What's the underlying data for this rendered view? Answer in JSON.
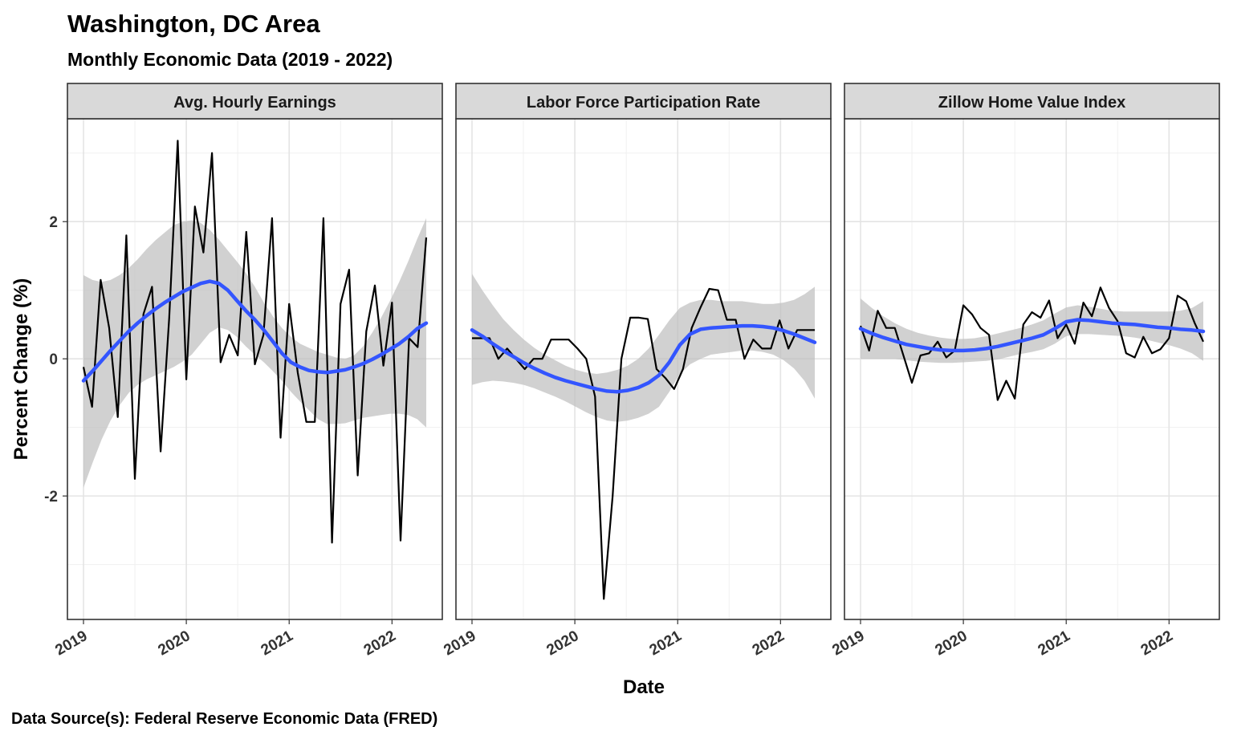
{
  "title": "Washington, DC Area",
  "subtitle": "Monthly Economic Data (2019 - 2022)",
  "caption": "Data Source(s): Federal Reserve Economic Data (FRED)",
  "chart_data": {
    "type": "line",
    "xlabel": "Date",
    "ylabel": "Percent Change (%)",
    "xlim": [
      2019.0,
      2022.333
    ],
    "ylim": [
      -3.8,
      3.5
    ],
    "y_ticks": [
      -2,
      0,
      2
    ],
    "y_tick_labels": [
      "-2",
      "0",
      "2"
    ],
    "x_ticks": [
      2019,
      2020,
      2021,
      2022
    ],
    "x_tick_labels": [
      "2019",
      "2020",
      "2021",
      "2022"
    ],
    "grid": true,
    "legend": "none",
    "colors": {
      "series": "#000000",
      "smooth": "#3355ff",
      "band": "#bebebe",
      "strip": "#d9d9d9"
    },
    "panels": [
      {
        "name": "Avg. Hourly Earnings",
        "series": [
          -0.12,
          -0.7,
          1.15,
          0.45,
          -0.85,
          1.8,
          -1.75,
          0.65,
          1.05,
          -1.35,
          0.6,
          3.18,
          -0.3,
          2.22,
          1.55,
          3.0,
          -0.05,
          0.35,
          0.05,
          1.85,
          -0.08,
          0.35,
          2.05,
          -1.15,
          0.8,
          -0.2,
          -0.92,
          -0.92,
          2.05,
          -2.68,
          0.8,
          1.3,
          -1.7,
          0.4,
          1.07,
          -0.1,
          0.82,
          -2.65,
          0.3,
          0.17,
          1.77
        ],
        "smooth": [
          -0.32,
          -0.18,
          -0.03,
          0.12,
          0.26,
          0.4,
          0.52,
          0.63,
          0.73,
          0.82,
          0.9,
          0.98,
          1.04,
          1.1,
          1.13,
          1.1,
          1.0,
          0.85,
          0.7,
          0.57,
          0.42,
          0.25,
          0.08,
          -0.05,
          -0.12,
          -0.17,
          -0.19,
          -0.2,
          -0.18,
          -0.16,
          -0.12,
          -0.07,
          -0.01,
          0.06,
          0.14,
          0.22,
          0.32,
          0.44,
          0.52
        ],
        "band_upper": [
          1.22,
          1.15,
          1.12,
          1.15,
          1.22,
          1.32,
          1.45,
          1.6,
          1.73,
          1.84,
          1.95,
          2.0,
          2.02,
          1.98,
          1.88,
          1.74,
          1.58,
          1.42,
          1.25,
          1.05,
          0.82,
          0.62,
          0.45,
          0.32,
          0.22,
          0.16,
          0.1,
          0.06,
          0.02,
          0.0,
          0.05,
          0.18,
          0.38,
          0.6,
          0.85,
          1.12,
          1.42,
          1.75,
          2.05
        ],
        "band_lower": [
          -1.88,
          -1.52,
          -1.18,
          -0.9,
          -0.68,
          -0.5,
          -0.38,
          -0.3,
          -0.24,
          -0.18,
          -0.12,
          -0.04,
          0.06,
          0.22,
          0.38,
          0.46,
          0.42,
          0.32,
          0.18,
          0.06,
          -0.05,
          -0.18,
          -0.32,
          -0.48,
          -0.62,
          -0.75,
          -0.88,
          -0.95,
          -0.95,
          -0.94,
          -0.9,
          -0.86,
          -0.84,
          -0.82,
          -0.8,
          -0.8,
          -0.82,
          -0.88,
          -1.0
        ]
      },
      {
        "name": "Labor Force Participation Rate",
        "series": [
          0.3,
          0.3,
          0.3,
          0.0,
          0.15,
          0.0,
          -0.15,
          0.0,
          0.0,
          0.28,
          0.28,
          0.28,
          0.15,
          0.0,
          -0.55,
          -3.5,
          -2.0,
          0.0,
          0.6,
          0.6,
          0.58,
          -0.15,
          -0.28,
          -0.44,
          -0.15,
          0.45,
          0.75,
          1.02,
          1.0,
          0.57,
          0.57,
          0.0,
          0.28,
          0.15,
          0.15,
          0.56,
          0.15,
          0.42,
          0.42,
          0.42
        ],
        "smooth": [
          0.42,
          0.33,
          0.22,
          0.12,
          0.03,
          -0.06,
          -0.14,
          -0.21,
          -0.27,
          -0.32,
          -0.36,
          -0.4,
          -0.44,
          -0.47,
          -0.48,
          -0.46,
          -0.42,
          -0.35,
          -0.24,
          -0.05,
          0.2,
          0.36,
          0.43,
          0.45,
          0.46,
          0.47,
          0.48,
          0.48,
          0.47,
          0.45,
          0.41,
          0.36,
          0.3,
          0.24
        ],
        "band_upper": [
          1.24,
          1.0,
          0.78,
          0.58,
          0.42,
          0.28,
          0.16,
          0.06,
          -0.02,
          -0.1,
          -0.16,
          -0.2,
          -0.22,
          -0.2,
          -0.16,
          -0.1,
          0.0,
          0.15,
          0.35,
          0.56,
          0.74,
          0.82,
          0.86,
          0.86,
          0.84,
          0.84,
          0.84,
          0.82,
          0.8,
          0.8,
          0.82,
          0.86,
          0.94,
          1.05
        ],
        "band_lower": [
          -0.38,
          -0.34,
          -0.32,
          -0.33,
          -0.35,
          -0.38,
          -0.43,
          -0.49,
          -0.55,
          -0.62,
          -0.7,
          -0.78,
          -0.85,
          -0.9,
          -0.92,
          -0.9,
          -0.86,
          -0.8,
          -0.7,
          -0.48,
          -0.22,
          -0.08,
          0.0,
          0.06,
          0.08,
          0.1,
          0.12,
          0.12,
          0.1,
          0.06,
          -0.02,
          -0.14,
          -0.32,
          -0.58
        ]
      },
      {
        "name": "Zillow Home Value Index",
        "series": [
          0.48,
          0.12,
          0.7,
          0.45,
          0.45,
          0.05,
          -0.35,
          0.05,
          0.08,
          0.25,
          0.02,
          0.12,
          0.78,
          0.65,
          0.45,
          0.35,
          -0.6,
          -0.32,
          -0.58,
          0.5,
          0.68,
          0.6,
          0.85,
          0.3,
          0.5,
          0.22,
          0.82,
          0.62,
          1.04,
          0.74,
          0.55,
          0.08,
          0.02,
          0.32,
          0.08,
          0.14,
          0.3,
          0.92,
          0.84,
          0.52,
          0.25
        ],
        "smooth": [
          0.44,
          0.37,
          0.31,
          0.26,
          0.21,
          0.18,
          0.15,
          0.13,
          0.12,
          0.12,
          0.13,
          0.15,
          0.18,
          0.22,
          0.26,
          0.3,
          0.35,
          0.44,
          0.54,
          0.57,
          0.56,
          0.54,
          0.52,
          0.51,
          0.5,
          0.48,
          0.46,
          0.45,
          0.43,
          0.42,
          0.4
        ],
        "band_upper": [
          0.88,
          0.74,
          0.62,
          0.52,
          0.44,
          0.38,
          0.34,
          0.31,
          0.29,
          0.29,
          0.3,
          0.33,
          0.37,
          0.41,
          0.45,
          0.5,
          0.56,
          0.66,
          0.75,
          0.78,
          0.76,
          0.73,
          0.7,
          0.69,
          0.69,
          0.69,
          0.69,
          0.69,
          0.7,
          0.74,
          0.84
        ],
        "band_lower": [
          0.0,
          0.0,
          0.0,
          0.0,
          -0.02,
          -0.04,
          -0.05,
          -0.06,
          -0.06,
          -0.05,
          -0.04,
          -0.03,
          -0.01,
          0.03,
          0.07,
          0.1,
          0.14,
          0.22,
          0.33,
          0.36,
          0.36,
          0.35,
          0.34,
          0.33,
          0.31,
          0.28,
          0.24,
          0.2,
          0.15,
          0.08,
          -0.03
        ]
      }
    ]
  }
}
